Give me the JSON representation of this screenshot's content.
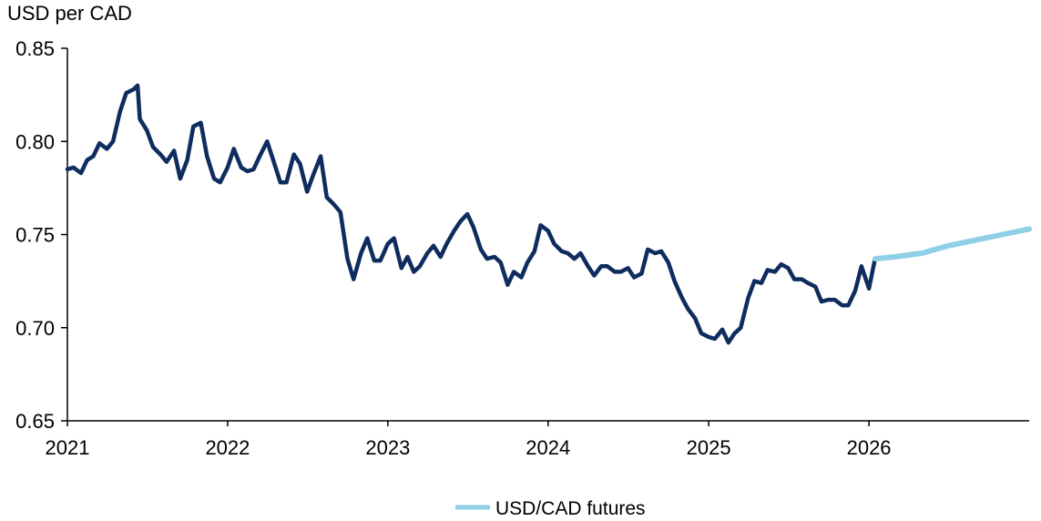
{
  "chart_data": {
    "type": "line",
    "title": "",
    "ylabel": "USD per CAD",
    "xlabel": "",
    "ylim": [
      0.65,
      0.85
    ],
    "xlim": [
      "2021-01-01",
      "2027-01-01"
    ],
    "y_ticks": [
      "0.65",
      "0.70",
      "0.75",
      "0.80",
      "0.85"
    ],
    "y_tick_values": [
      0.65,
      0.7,
      0.75,
      0.8,
      0.85
    ],
    "x_ticks": [
      "2021",
      "2022",
      "2023",
      "2024",
      "2025",
      "2026"
    ],
    "x_tick_values": [
      "2021-01-01",
      "2022-01-01",
      "2023-01-01",
      "2024-01-01",
      "2025-01-01",
      "2026-01-01"
    ],
    "grid": false,
    "legend_position": "bottom-center",
    "legend": [
      "USD/CAD futures"
    ],
    "series": [
      {
        "color": "#0e2c5e",
        "x": [
          "2021-01-01",
          "2021-01-15",
          "2021-02-01",
          "2021-02-15",
          "2021-03-01",
          "2021-03-15",
          "2021-04-01",
          "2021-04-15",
          "2021-05-01",
          "2021-05-15",
          "2021-06-01",
          "2021-06-10",
          "2021-06-15",
          "2021-07-01",
          "2021-07-15",
          "2021-08-01",
          "2021-08-15",
          "2021-09-01",
          "2021-09-15",
          "2021-10-01",
          "2021-10-15",
          "2021-11-01",
          "2021-11-15",
          "2021-12-01",
          "2021-12-15",
          "2022-01-01",
          "2022-01-15",
          "2022-02-01",
          "2022-02-15",
          "2022-03-01",
          "2022-03-15",
          "2022-04-01",
          "2022-04-15",
          "2022-05-01",
          "2022-05-15",
          "2022-06-01",
          "2022-06-15",
          "2022-07-01",
          "2022-07-15",
          "2022-08-01",
          "2022-08-15",
          "2022-09-01",
          "2022-09-15",
          "2022-10-01",
          "2022-10-15",
          "2022-11-01",
          "2022-11-15",
          "2022-12-01",
          "2022-12-15",
          "2023-01-01",
          "2023-01-15",
          "2023-02-01",
          "2023-02-15",
          "2023-03-01",
          "2023-03-15",
          "2023-04-01",
          "2023-04-15",
          "2023-05-01",
          "2023-05-15",
          "2023-06-01",
          "2023-06-15",
          "2023-07-01",
          "2023-07-15",
          "2023-08-01",
          "2023-08-15",
          "2023-09-01",
          "2023-09-15",
          "2023-10-01",
          "2023-10-15",
          "2023-11-01",
          "2023-11-15",
          "2023-12-01",
          "2023-12-15",
          "2024-01-01",
          "2024-01-15",
          "2024-02-01",
          "2024-02-15",
          "2024-03-01",
          "2024-03-15",
          "2024-04-01",
          "2024-04-15",
          "2024-05-01",
          "2024-05-15",
          "2024-06-01",
          "2024-06-15",
          "2024-07-01",
          "2024-07-15",
          "2024-08-01",
          "2024-08-15",
          "2024-09-01",
          "2024-09-15",
          "2024-10-01",
          "2024-10-15",
          "2024-11-01",
          "2024-11-15",
          "2024-12-01",
          "2024-12-15",
          "2025-01-01",
          "2025-01-15",
          "2025-02-01",
          "2025-02-15",
          "2025-03-01",
          "2025-03-15",
          "2025-04-01",
          "2025-04-15",
          "2025-05-01",
          "2025-05-15",
          "2025-06-01",
          "2025-06-15",
          "2025-07-01",
          "2025-07-15",
          "2025-08-01",
          "2025-08-15",
          "2025-09-01",
          "2025-09-15",
          "2025-10-01",
          "2025-10-15",
          "2025-11-01",
          "2025-11-15",
          "2025-12-01",
          "2025-12-15",
          "2026-01-01",
          "2026-01-15"
        ],
        "values": [
          0.785,
          0.786,
          0.783,
          0.79,
          0.792,
          0.799,
          0.796,
          0.8,
          0.816,
          0.826,
          0.828,
          0.83,
          0.812,
          0.806,
          0.797,
          0.793,
          0.789,
          0.795,
          0.78,
          0.79,
          0.808,
          0.81,
          0.792,
          0.78,
          0.778,
          0.786,
          0.796,
          0.786,
          0.784,
          0.785,
          0.792,
          0.8,
          0.79,
          0.778,
          0.778,
          0.793,
          0.788,
          0.773,
          0.782,
          0.792,
          0.77,
          0.766,
          0.762,
          0.737,
          0.726,
          0.74,
          0.748,
          0.736,
          0.736,
          0.745,
          0.748,
          0.732,
          0.738,
          0.73,
          0.733,
          0.74,
          0.744,
          0.738,
          0.745,
          0.752,
          0.757,
          0.761,
          0.754,
          0.742,
          0.737,
          0.738,
          0.735,
          0.723,
          0.73,
          0.727,
          0.735,
          0.741,
          0.755,
          0.752,
          0.745,
          0.741,
          0.74,
          0.737,
          0.74,
          0.733,
          0.728,
          0.733,
          0.733,
          0.73,
          0.73,
          0.732,
          0.727,
          0.729,
          0.742,
          0.74,
          0.741,
          0.735,
          0.725,
          0.716,
          0.71,
          0.705,
          0.697,
          0.695,
          0.694,
          0.699,
          0.692,
          0.697,
          0.7,
          0.716,
          0.725,
          0.724,
          0.731,
          0.73,
          0.734,
          0.732,
          0.726,
          0.726,
          0.724,
          0.722,
          0.714,
          0.715,
          0.715,
          0.712,
          0.712,
          0.72,
          0.733,
          0.721,
          0.737
        ]
      },
      {
        "name": "USD/CAD futures",
        "color": "#8fd0e6",
        "x": [
          "2026-01-15",
          "2026-03-01",
          "2026-05-01",
          "2026-07-01",
          "2026-09-01",
          "2026-11-01",
          "2027-01-01"
        ],
        "values": [
          0.737,
          0.738,
          0.74,
          0.744,
          0.747,
          0.75,
          0.753
        ]
      }
    ]
  }
}
